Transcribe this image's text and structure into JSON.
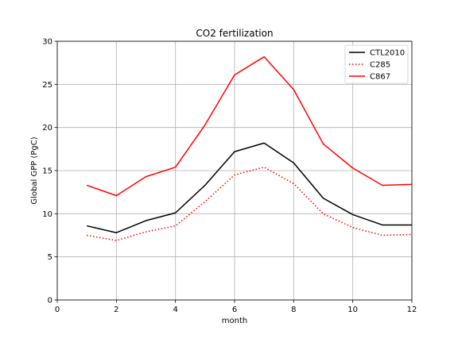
{
  "chart_data": {
    "type": "line",
    "title": "CO2 fertilization",
    "xlabel": "month",
    "ylabel": "Global GPP (PgC)",
    "xlim": [
      0,
      12
    ],
    "ylim": [
      0,
      30
    ],
    "xticks": [
      0,
      2,
      4,
      6,
      8,
      10,
      12
    ],
    "yticks": [
      0,
      5,
      10,
      15,
      20,
      25,
      30
    ],
    "grid": true,
    "legend_position": "top-right",
    "x": [
      1,
      2,
      3,
      4,
      5,
      6,
      7,
      8,
      9,
      10,
      11,
      12
    ],
    "series": [
      {
        "name": "CTL2010",
        "color": "#000000",
        "dash": "solid",
        "values": [
          8.6,
          7.8,
          9.2,
          10.1,
          13.3,
          17.2,
          18.2,
          15.9,
          11.8,
          9.9,
          8.7,
          8.7
        ]
      },
      {
        "name": "C285",
        "color": "#ff0000",
        "dash": "dotted",
        "values": [
          7.5,
          6.9,
          7.9,
          8.6,
          11.4,
          14.5,
          15.4,
          13.5,
          10.0,
          8.4,
          7.5,
          7.6
        ]
      },
      {
        "name": "C867",
        "color": "#ff0000",
        "dash": "solid",
        "values": [
          13.3,
          12.1,
          14.3,
          15.4,
          20.3,
          26.1,
          28.2,
          24.4,
          18.1,
          15.3,
          13.3,
          13.4
        ]
      }
    ]
  }
}
